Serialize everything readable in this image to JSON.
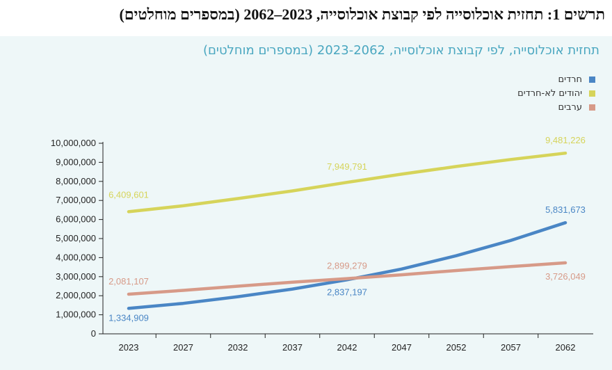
{
  "document_title": "תרשים 1: תחזית אוכלוסייה לפי קבוצת אוכלוסייה, 2023–2062 (במספרים מוחלטים)",
  "chart_data": {
    "type": "line",
    "title": "תחזית אוכלוסייה, לפי קבוצת אוכלוסייה, 2023-2062 (במספרים מוחלטים)",
    "xlabel": "",
    "ylabel": "",
    "categories": [
      "2023",
      "2027",
      "2032",
      "2037",
      "2042",
      "2047",
      "2052",
      "2057",
      "2062"
    ],
    "y_ticks": [
      "10,000,000",
      "9,000,000",
      "8,000,000",
      "7,000,000",
      "6,000,000",
      "5,000,000",
      "4,000,000",
      "3,000,000",
      "2,000,000",
      "1,000,000",
      "0"
    ],
    "ylim": [
      0,
      10000000
    ],
    "grid": false,
    "legend_position": "top-right",
    "series": [
      {
        "name": "חרדים",
        "color": "#4a86c5",
        "values": [
          1334909,
          1600000,
          1950000,
          2350000,
          2837197,
          3400000,
          4100000,
          4900000,
          5831673
        ],
        "labels": [
          {
            "index": 0,
            "text": "1,334,909"
          },
          {
            "index": 4,
            "text": "2,837,197"
          },
          {
            "index": 8,
            "text": "5,831,673"
          }
        ]
      },
      {
        "name": "יהודים לא-חרדים",
        "color": "#d6d45a",
        "values": [
          6409601,
          6720000,
          7100000,
          7500000,
          7949791,
          8380000,
          8780000,
          9150000,
          9481226
        ],
        "labels": [
          {
            "index": 0,
            "text": "6,409,601"
          },
          {
            "index": 4,
            "text": "7,949,791"
          },
          {
            "index": 8,
            "text": "9,481,226"
          }
        ]
      },
      {
        "name": "ערבים",
        "color": "#d79a88",
        "values": [
          2081107,
          2280000,
          2500000,
          2710000,
          2899279,
          3100000,
          3320000,
          3530000,
          3726049
        ],
        "labels": [
          {
            "index": 0,
            "text": "2,081,107"
          },
          {
            "index": 4,
            "text": "2,899,279"
          },
          {
            "index": 8,
            "text": "3,726,049"
          }
        ]
      }
    ]
  }
}
